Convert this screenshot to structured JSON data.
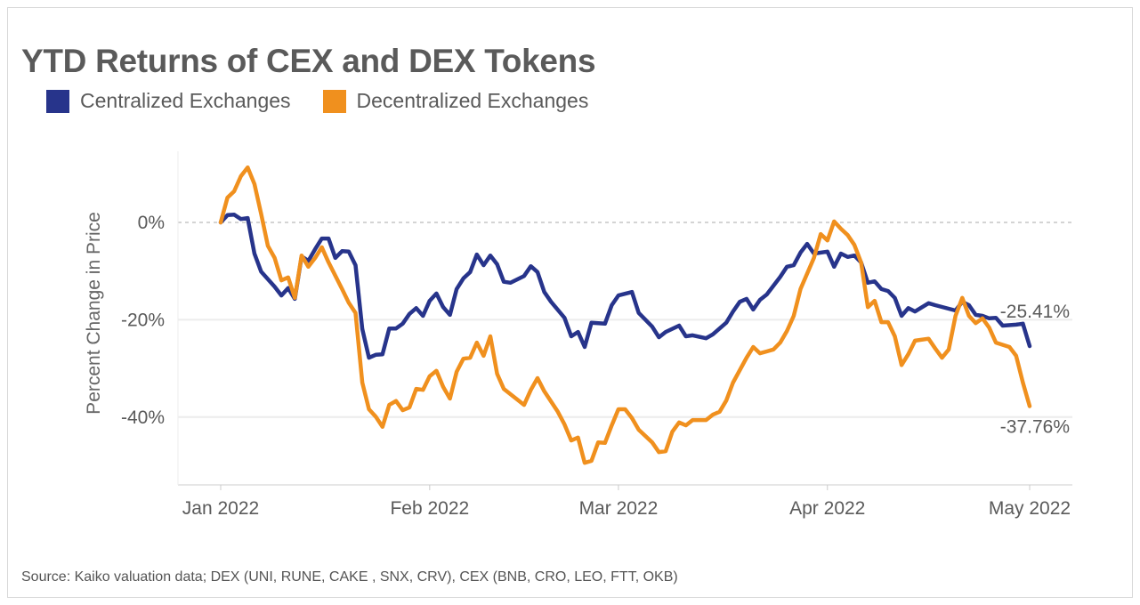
{
  "chart_data": {
    "type": "line",
    "title": "YTD Returns of CEX and DEX Tokens",
    "xlabel": "",
    "ylabel": "Percent Change in Price",
    "x_ticks": [
      {
        "date": "2022-01-01",
        "label": "Jan 2022"
      },
      {
        "date": "2022-02-01",
        "label": "Feb 2022"
      },
      {
        "date": "2022-03-01",
        "label": "Mar 2022"
      },
      {
        "date": "2022-04-01",
        "label": "Apr 2022"
      },
      {
        "date": "2022-05-01",
        "label": "May 2022"
      }
    ],
    "y_ticks": [
      {
        "value": 0,
        "label": "0%"
      },
      {
        "value": -20,
        "label": "-20%"
      },
      {
        "value": -40,
        "label": "-40%"
      }
    ],
    "xlim": [
      "2022-01-01",
      "2022-05-01"
    ],
    "ylim": [
      -54,
      15
    ],
    "grid": "horizontal",
    "legend": "top-left",
    "source": "Source: Kaiko valuation data; DEX (UNI, RUNE, CAKE , SNX, CRV), CEX (BNB, CRO, LEO, FTT, OKB)",
    "series": [
      {
        "name": "Centralized Exchanges",
        "color": "#27348b",
        "end_label": "-25.41%",
        "points": [
          [
            "2022-01-01",
            0
          ],
          [
            "2022-01-02",
            1.5
          ],
          [
            "2022-01-03",
            1.6
          ],
          [
            "2022-01-04",
            0.7
          ],
          [
            "2022-01-05",
            0.9
          ],
          [
            "2022-01-06",
            -6.4
          ],
          [
            "2022-01-07",
            -10.1
          ],
          [
            "2022-01-09",
            -13.2
          ],
          [
            "2022-01-10",
            -15.0
          ],
          [
            "2022-01-11",
            -13.5
          ],
          [
            "2022-01-12",
            -15.7
          ],
          [
            "2022-01-13",
            -7.0
          ],
          [
            "2022-01-14",
            -7.9
          ],
          [
            "2022-01-15",
            -5.5
          ],
          [
            "2022-01-16",
            -3.3
          ],
          [
            "2022-01-17",
            -3.3
          ],
          [
            "2022-01-18",
            -7.3
          ],
          [
            "2022-01-19",
            -5.9
          ],
          [
            "2022-01-20",
            -6.0
          ],
          [
            "2022-01-21",
            -8.8
          ],
          [
            "2022-01-22",
            -21.9
          ],
          [
            "2022-01-23",
            -27.8
          ],
          [
            "2022-01-24",
            -27.2
          ],
          [
            "2022-01-25",
            -27.1
          ],
          [
            "2022-01-26",
            -21.8
          ],
          [
            "2022-01-27",
            -21.8
          ],
          [
            "2022-01-28",
            -20.8
          ],
          [
            "2022-01-29",
            -18.8
          ],
          [
            "2022-01-30",
            -17.6
          ],
          [
            "2022-01-31",
            -19.2
          ],
          [
            "2022-02-01",
            -16.1
          ],
          [
            "2022-02-02",
            -14.6
          ],
          [
            "2022-02-03",
            -17.4
          ],
          [
            "2022-02-04",
            -19.0
          ],
          [
            "2022-02-05",
            -13.7
          ],
          [
            "2022-02-06",
            -11.5
          ],
          [
            "2022-02-07",
            -10.2
          ],
          [
            "2022-02-08",
            -6.6
          ],
          [
            "2022-02-09",
            -8.8
          ],
          [
            "2022-02-10",
            -6.8
          ],
          [
            "2022-02-11",
            -8.6
          ],
          [
            "2022-02-12",
            -12.2
          ],
          [
            "2022-02-13",
            -12.4
          ],
          [
            "2022-02-15",
            -11.0
          ],
          [
            "2022-02-16",
            -9.0
          ],
          [
            "2022-02-17",
            -10.2
          ],
          [
            "2022-02-18",
            -14.3
          ],
          [
            "2022-02-19",
            -16.3
          ],
          [
            "2022-02-21",
            -19.6
          ],
          [
            "2022-02-22",
            -23.4
          ],
          [
            "2022-02-23",
            -22.5
          ],
          [
            "2022-02-24",
            -25.6
          ],
          [
            "2022-02-25",
            -20.6
          ],
          [
            "2022-02-27",
            -20.8
          ],
          [
            "2022-02-28",
            -17.0
          ],
          [
            "2022-03-01",
            -15.0
          ],
          [
            "2022-03-03",
            -14.3
          ],
          [
            "2022-03-04",
            -18.6
          ],
          [
            "2022-03-06",
            -21.4
          ],
          [
            "2022-03-07",
            -23.6
          ],
          [
            "2022-03-08",
            -22.5
          ],
          [
            "2022-03-10",
            -21.2
          ],
          [
            "2022-03-11",
            -23.4
          ],
          [
            "2022-03-12",
            -23.2
          ],
          [
            "2022-03-14",
            -23.8
          ],
          [
            "2022-03-15",
            -23.0
          ],
          [
            "2022-03-17",
            -20.6
          ],
          [
            "2022-03-18",
            -18.3
          ],
          [
            "2022-03-19",
            -16.3
          ],
          [
            "2022-03-20",
            -15.7
          ],
          [
            "2022-03-21",
            -17.9
          ],
          [
            "2022-03-22",
            -15.9
          ],
          [
            "2022-03-23",
            -14.8
          ],
          [
            "2022-03-25",
            -11.2
          ],
          [
            "2022-03-26",
            -9.1
          ],
          [
            "2022-03-27",
            -8.8
          ],
          [
            "2022-03-28",
            -6.2
          ],
          [
            "2022-03-29",
            -4.4
          ],
          [
            "2022-03-30",
            -6.4
          ],
          [
            "2022-04-01",
            -6.0
          ],
          [
            "2022-04-02",
            -9.1
          ],
          [
            "2022-04-03",
            -6.4
          ],
          [
            "2022-04-04",
            -7.1
          ],
          [
            "2022-04-05",
            -6.8
          ],
          [
            "2022-04-06",
            -8.2
          ],
          [
            "2022-04-07",
            -12.4
          ],
          [
            "2022-04-08",
            -12.1
          ],
          [
            "2022-04-09",
            -13.7
          ],
          [
            "2022-04-10",
            -14.1
          ],
          [
            "2022-04-11",
            -15.5
          ],
          [
            "2022-04-12",
            -19.2
          ],
          [
            "2022-04-13",
            -17.6
          ],
          [
            "2022-04-14",
            -18.3
          ],
          [
            "2022-04-16",
            -16.6
          ],
          [
            "2022-04-17",
            -17.0
          ],
          [
            "2022-04-20",
            -18.1
          ],
          [
            "2022-04-21",
            -16.3
          ],
          [
            "2022-04-22",
            -17.0
          ],
          [
            "2022-04-23",
            -19.0
          ],
          [
            "2022-04-24",
            -19.2
          ],
          [
            "2022-04-25",
            -19.7
          ],
          [
            "2022-04-26",
            -19.6
          ],
          [
            "2022-04-27",
            -21.2
          ],
          [
            "2022-04-29",
            -21.0
          ],
          [
            "2022-04-30",
            -20.8
          ],
          [
            "2022-05-01",
            -25.41
          ]
        ]
      },
      {
        "name": "Decentralized Exchanges",
        "color": "#f0901e",
        "end_label": "-37.76%",
        "points": [
          [
            "2022-01-01",
            0
          ],
          [
            "2022-01-02",
            5.1
          ],
          [
            "2022-01-03",
            6.4
          ],
          [
            "2022-01-04",
            9.5
          ],
          [
            "2022-01-05",
            11.3
          ],
          [
            "2022-01-06",
            7.9
          ],
          [
            "2022-01-07",
            1.8
          ],
          [
            "2022-01-08",
            -4.8
          ],
          [
            "2022-01-09",
            -7.3
          ],
          [
            "2022-01-10",
            -11.9
          ],
          [
            "2022-01-11",
            -11.3
          ],
          [
            "2022-01-12",
            -15.5
          ],
          [
            "2022-01-13",
            -6.8
          ],
          [
            "2022-01-14",
            -9.1
          ],
          [
            "2022-01-15",
            -7.3
          ],
          [
            "2022-01-16",
            -5.1
          ],
          [
            "2022-01-17",
            -8.2
          ],
          [
            "2022-01-19",
            -13.7
          ],
          [
            "2022-01-20",
            -16.5
          ],
          [
            "2022-01-21",
            -18.6
          ],
          [
            "2022-01-22",
            -32.9
          ],
          [
            "2022-01-23",
            -38.4
          ],
          [
            "2022-01-24",
            -39.9
          ],
          [
            "2022-01-25",
            -42.0
          ],
          [
            "2022-01-26",
            -37.5
          ],
          [
            "2022-01-27",
            -36.7
          ],
          [
            "2022-01-28",
            -38.6
          ],
          [
            "2022-01-29",
            -38.0
          ],
          [
            "2022-01-30",
            -34.2
          ],
          [
            "2022-01-31",
            -34.4
          ],
          [
            "2022-02-01",
            -31.6
          ],
          [
            "2022-02-02",
            -30.5
          ],
          [
            "2022-02-03",
            -33.8
          ],
          [
            "2022-02-04",
            -36.2
          ],
          [
            "2022-02-05",
            -30.7
          ],
          [
            "2022-02-06",
            -28.0
          ],
          [
            "2022-02-07",
            -27.8
          ],
          [
            "2022-02-08",
            -24.7
          ],
          [
            "2022-02-09",
            -27.4
          ],
          [
            "2022-02-10",
            -23.4
          ],
          [
            "2022-02-11",
            -31.1
          ],
          [
            "2022-02-12",
            -34.2
          ],
          [
            "2022-02-13",
            -35.3
          ],
          [
            "2022-02-15",
            -37.5
          ],
          [
            "2022-02-16",
            -34.4
          ],
          [
            "2022-02-17",
            -32.0
          ],
          [
            "2022-02-18",
            -34.7
          ],
          [
            "2022-02-20",
            -38.9
          ],
          [
            "2022-02-21",
            -41.5
          ],
          [
            "2022-02-22",
            -44.8
          ],
          [
            "2022-02-23",
            -44.2
          ],
          [
            "2022-02-24",
            -49.4
          ],
          [
            "2022-02-25",
            -49.0
          ],
          [
            "2022-02-26",
            -45.2
          ],
          [
            "2022-02-27",
            -45.3
          ],
          [
            "2022-02-28",
            -41.7
          ],
          [
            "2022-03-01",
            -38.4
          ],
          [
            "2022-03-02",
            -38.4
          ],
          [
            "2022-03-03",
            -40.2
          ],
          [
            "2022-03-04",
            -42.6
          ],
          [
            "2022-03-06",
            -45.2
          ],
          [
            "2022-03-07",
            -47.2
          ],
          [
            "2022-03-08",
            -47.0
          ],
          [
            "2022-03-09",
            -43.0
          ],
          [
            "2022-03-10",
            -41.1
          ],
          [
            "2022-03-11",
            -41.7
          ],
          [
            "2022-03-12",
            -40.6
          ],
          [
            "2022-03-14",
            -40.6
          ],
          [
            "2022-03-15",
            -39.5
          ],
          [
            "2022-03-16",
            -38.9
          ],
          [
            "2022-03-17",
            -36.6
          ],
          [
            "2022-03-18",
            -32.9
          ],
          [
            "2022-03-20",
            -27.8
          ],
          [
            "2022-03-21",
            -25.6
          ],
          [
            "2022-03-22",
            -26.9
          ],
          [
            "2022-03-23",
            -26.5
          ],
          [
            "2022-03-24",
            -26.1
          ],
          [
            "2022-03-25",
            -24.7
          ],
          [
            "2022-03-26",
            -22.3
          ],
          [
            "2022-03-27",
            -19.2
          ],
          [
            "2022-03-28",
            -13.7
          ],
          [
            "2022-03-30",
            -7.3
          ],
          [
            "2022-03-31",
            -2.4
          ],
          [
            "2022-04-01",
            -3.7
          ],
          [
            "2022-04-02",
            0.2
          ],
          [
            "2022-04-03",
            -1.3
          ],
          [
            "2022-04-04",
            -2.6
          ],
          [
            "2022-04-05",
            -4.6
          ],
          [
            "2022-04-06",
            -8.2
          ],
          [
            "2022-04-07",
            -17.4
          ],
          [
            "2022-04-08",
            -16.1
          ],
          [
            "2022-04-09",
            -20.5
          ],
          [
            "2022-04-10",
            -20.5
          ],
          [
            "2022-04-11",
            -23.4
          ],
          [
            "2022-04-12",
            -29.3
          ],
          [
            "2022-04-13",
            -27.1
          ],
          [
            "2022-04-14",
            -24.3
          ],
          [
            "2022-04-16",
            -23.9
          ],
          [
            "2022-04-17",
            -25.9
          ],
          [
            "2022-04-18",
            -27.8
          ],
          [
            "2022-04-19",
            -26.1
          ],
          [
            "2022-04-20",
            -19.2
          ],
          [
            "2022-04-21",
            -15.5
          ],
          [
            "2022-04-22",
            -19.2
          ],
          [
            "2022-04-23",
            -20.7
          ],
          [
            "2022-04-24",
            -19.7
          ],
          [
            "2022-04-25",
            -21.6
          ],
          [
            "2022-04-26",
            -24.7
          ],
          [
            "2022-04-28",
            -25.6
          ],
          [
            "2022-04-29",
            -27.4
          ],
          [
            "2022-04-30",
            -32.9
          ],
          [
            "2022-05-01",
            -37.76
          ]
        ]
      }
    ]
  }
}
